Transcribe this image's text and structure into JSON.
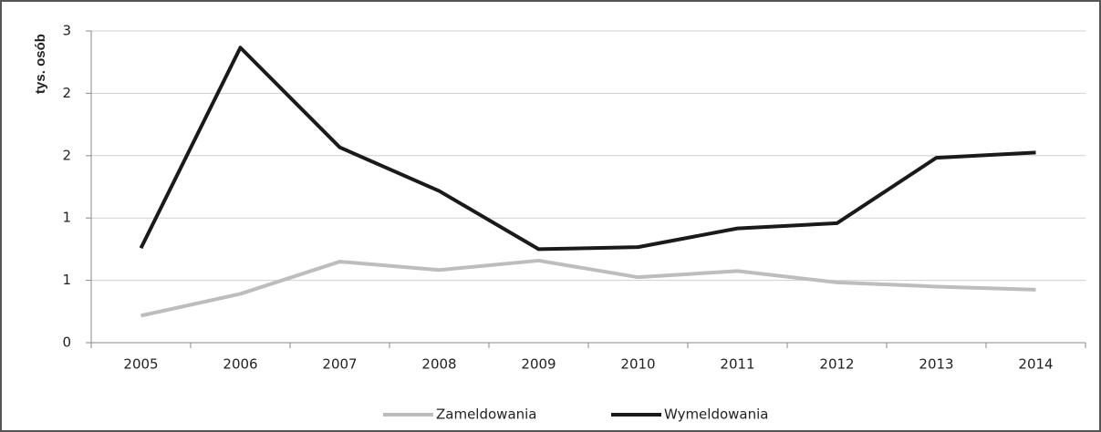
{
  "chart_data": {
    "type": "line",
    "y_label": "tys. osób",
    "categories": [
      "2005",
      "2006",
      "2007",
      "2008",
      "2009",
      "2010",
      "2011",
      "2012",
      "2013",
      "2014"
    ],
    "series": [
      {
        "name": "Zameldowania",
        "color": "#bdbdbd",
        "values": [
          0.26,
          0.47,
          0.78,
          0.7,
          0.79,
          0.63,
          0.69,
          0.58,
          0.54,
          0.51
        ]
      },
      {
        "name": "Wymeldowania",
        "color": "#1a1a1a",
        "values": [
          0.91,
          2.84,
          1.88,
          1.46,
          0.9,
          0.92,
          1.1,
          1.15,
          1.78,
          1.83
        ]
      }
    ],
    "ylim": [
      0,
      3
    ],
    "yticks": [
      0,
      {
        "value": 0.6,
        "label": "1"
      },
      {
        "value": 1.2,
        "label": "1"
      },
      {
        "value": 1.8,
        "label": "2"
      },
      {
        "value": 2.4,
        "label": "2"
      },
      3
    ],
    "grid": true,
    "legend": "bottom"
  }
}
